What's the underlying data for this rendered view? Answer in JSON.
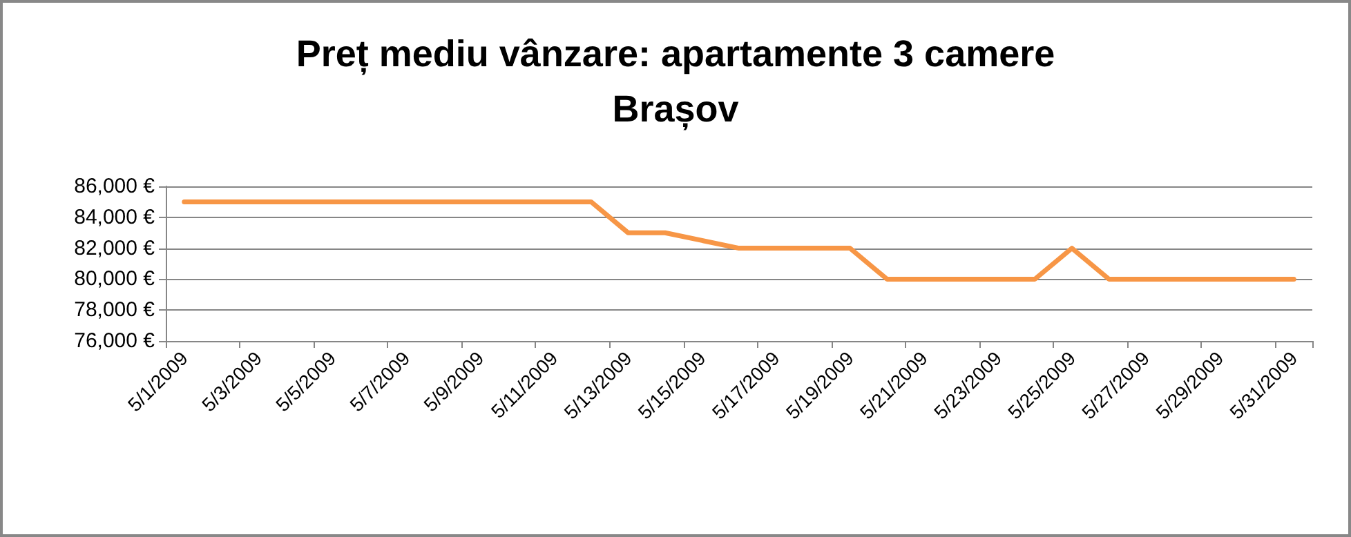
{
  "chart_data": {
    "type": "line",
    "title": "Preț mediu vânzare: apartamente 3 camere\nBrașov",
    "categories": [
      "5/1/2009",
      null,
      "5/3/2009",
      null,
      "5/5/2009",
      null,
      "5/7/2009",
      null,
      "5/9/2009",
      null,
      "5/11/2009",
      null,
      "5/13/2009",
      null,
      "5/15/2009",
      null,
      "5/17/2009",
      null,
      "5/19/2009",
      null,
      "5/21/2009",
      null,
      "5/23/2009",
      null,
      "5/25/2009",
      null,
      "5/27/2009",
      null,
      "5/29/2009",
      null,
      "5/31/2009"
    ],
    "series": [
      {
        "color": "#f79646",
        "values": [
          85000,
          85000,
          85000,
          85000,
          85000,
          85000,
          85000,
          85000,
          85000,
          85000,
          85000,
          85000,
          83000,
          83000,
          82500,
          82000,
          82000,
          82000,
          82000,
          80000,
          80000,
          80000,
          80000,
          80000,
          82000,
          80000,
          80000,
          80000,
          80000,
          80000,
          80000
        ]
      }
    ],
    "ylim": [
      76000,
      86000
    ],
    "yticks": [
      {
        "value": 76000,
        "label": "76,000 €"
      },
      {
        "value": 78000,
        "label": "78,000 €"
      },
      {
        "value": 80000,
        "label": "80,000 €"
      },
      {
        "value": 82000,
        "label": "82,000 €"
      },
      {
        "value": 84000,
        "label": "84,000 €"
      },
      {
        "value": 86000,
        "label": "86,000 €"
      }
    ],
    "grid": "y",
    "marker": "none",
    "line_style": "solid"
  }
}
